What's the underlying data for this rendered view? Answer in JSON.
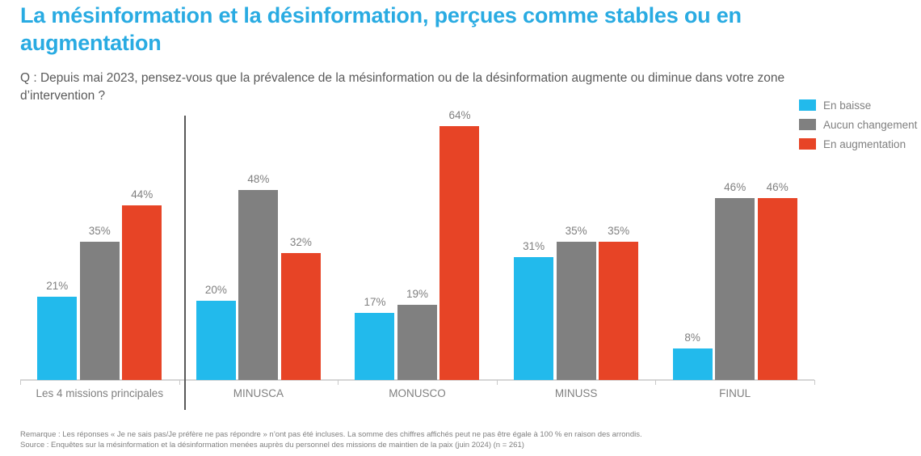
{
  "colors": {
    "title": "#29ABE2",
    "en_baisse": "#22BAEC",
    "aucun_changement": "#808080",
    "en_augmentation": "#E74426",
    "question_text": "#595959",
    "label_text": "#808080",
    "footnote_text": "#7F7F7F",
    "axis": "#D6D6D6",
    "divider": "#595959"
  },
  "chart_data": {
    "type": "bar",
    "title": "La mésinformation et la désinformation, perçues comme stables ou en augmentation",
    "subtitle": "Q : Depuis mai 2023, pensez-vous que la prévalence de la mésinformation ou de la désinformation augmente ou diminue dans votre zone d’intervention ?",
    "categories": [
      "Les 4 missions principales",
      "MINUSCA",
      "MONUSCO",
      "MINUSS",
      "FINUL"
    ],
    "series": [
      {
        "name": "En baisse",
        "color_key": "en_baisse",
        "values": [
          21,
          20,
          17,
          31,
          8
        ]
      },
      {
        "name": "Aucun changement",
        "color_key": "aucun_changement",
        "values": [
          35,
          48,
          19,
          35,
          46
        ]
      },
      {
        "name": "En augmentation",
        "color_key": "en_augmentation",
        "values": [
          44,
          32,
          64,
          35,
          46
        ]
      }
    ],
    "value_suffix": "%",
    "xlabel": "",
    "ylabel": "",
    "ylim": [
      0,
      67
    ],
    "grid": false,
    "legend_position": "top-right",
    "separator_after_category_index": 0,
    "note": "Remarque : Les réponses « Je ne sais pas/Je préfère ne pas répondre » n’ont pas été incluses. La somme des chiffres affichés peut ne pas être égale à 100 % en raison des arrondis.",
    "source": "Source : Enquêtes sur la mésinformation et la désinformation menées auprès du personnel des missions de maintien de la paix (juin 2024) (n = 261)"
  }
}
